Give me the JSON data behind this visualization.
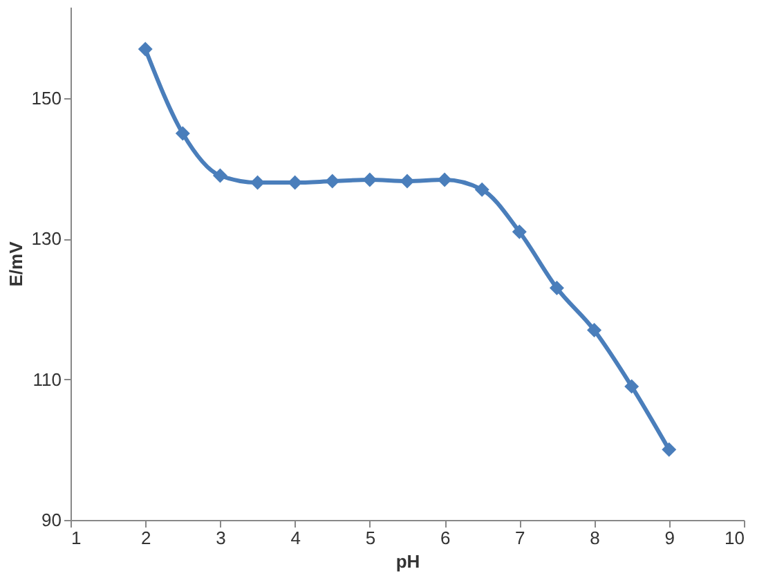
{
  "chart_data": {
    "type": "line",
    "xlabel": "pH",
    "ylabel": "E/mV",
    "x": [
      2,
      2.5,
      3,
      3.5,
      4,
      4.5,
      5,
      5.5,
      6,
      6.5,
      7,
      7.5,
      8,
      8.5,
      9
    ],
    "series": [
      {
        "color": "#4a7ebb",
        "values": [
          157,
          145,
          139,
          138,
          138,
          138.2,
          138.4,
          138.2,
          138.4,
          137,
          131,
          123,
          117,
          109,
          100
        ]
      }
    ],
    "xlim": [
      1,
      10
    ],
    "xticks": [
      1,
      2,
      3,
      4,
      5,
      6,
      7,
      8,
      9,
      10
    ],
    "ylim": [
      90,
      163
    ],
    "yticks": [
      90,
      110,
      130,
      150
    ],
    "grid": false,
    "marker": "diamond",
    "line_style": "solid"
  }
}
